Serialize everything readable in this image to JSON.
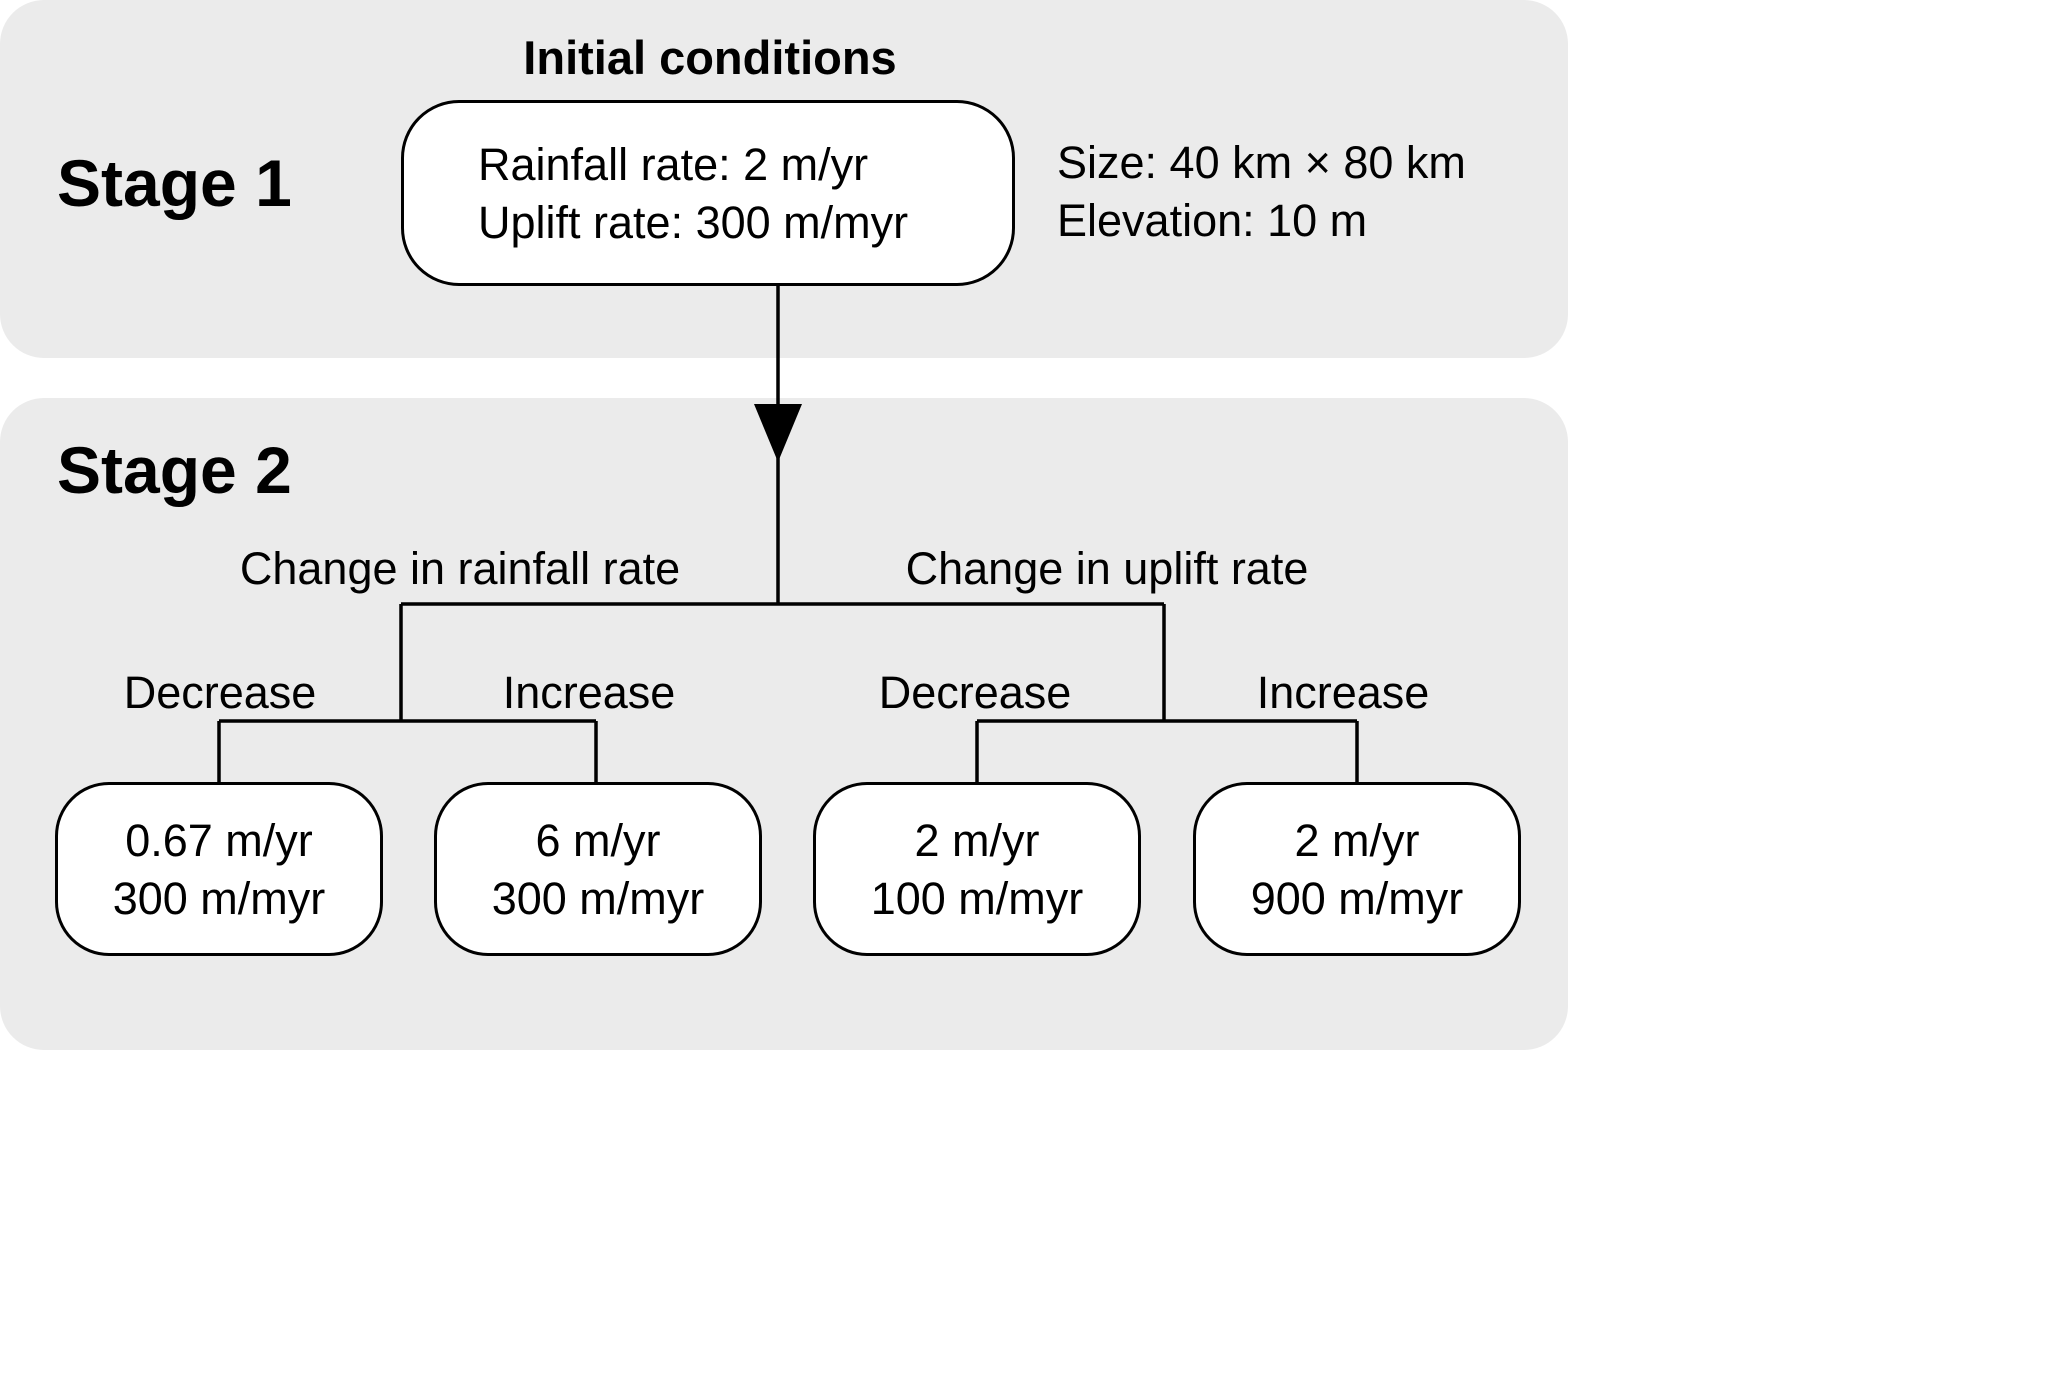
{
  "stage1": {
    "title": "Stage 1",
    "heading": "Initial conditions",
    "initial_box": {
      "rainfall": "Rainfall rate: 2 m/yr",
      "uplift": "Uplift rate: 300 m/myr"
    },
    "side_info": {
      "size": "Size: 40 km × 80 km",
      "elevation": "Elevation: 10 m"
    }
  },
  "stage2": {
    "title": "Stage 2",
    "branches": [
      {
        "label": "Change in rainfall rate",
        "children": [
          {
            "label": "Decrease",
            "rainfall": "0.67 m/yr",
            "uplift": "300 m/myr"
          },
          {
            "label": "Increase",
            "rainfall": "6 m/yr",
            "uplift": "300 m/myr"
          }
        ]
      },
      {
        "label": "Change in uplift rate",
        "children": [
          {
            "label": "Decrease",
            "rainfall": "2 m/yr",
            "uplift": "100 m/myr"
          },
          {
            "label": "Increase",
            "rainfall": "2 m/yr",
            "uplift": "900 m/myr"
          }
        ]
      }
    ]
  }
}
